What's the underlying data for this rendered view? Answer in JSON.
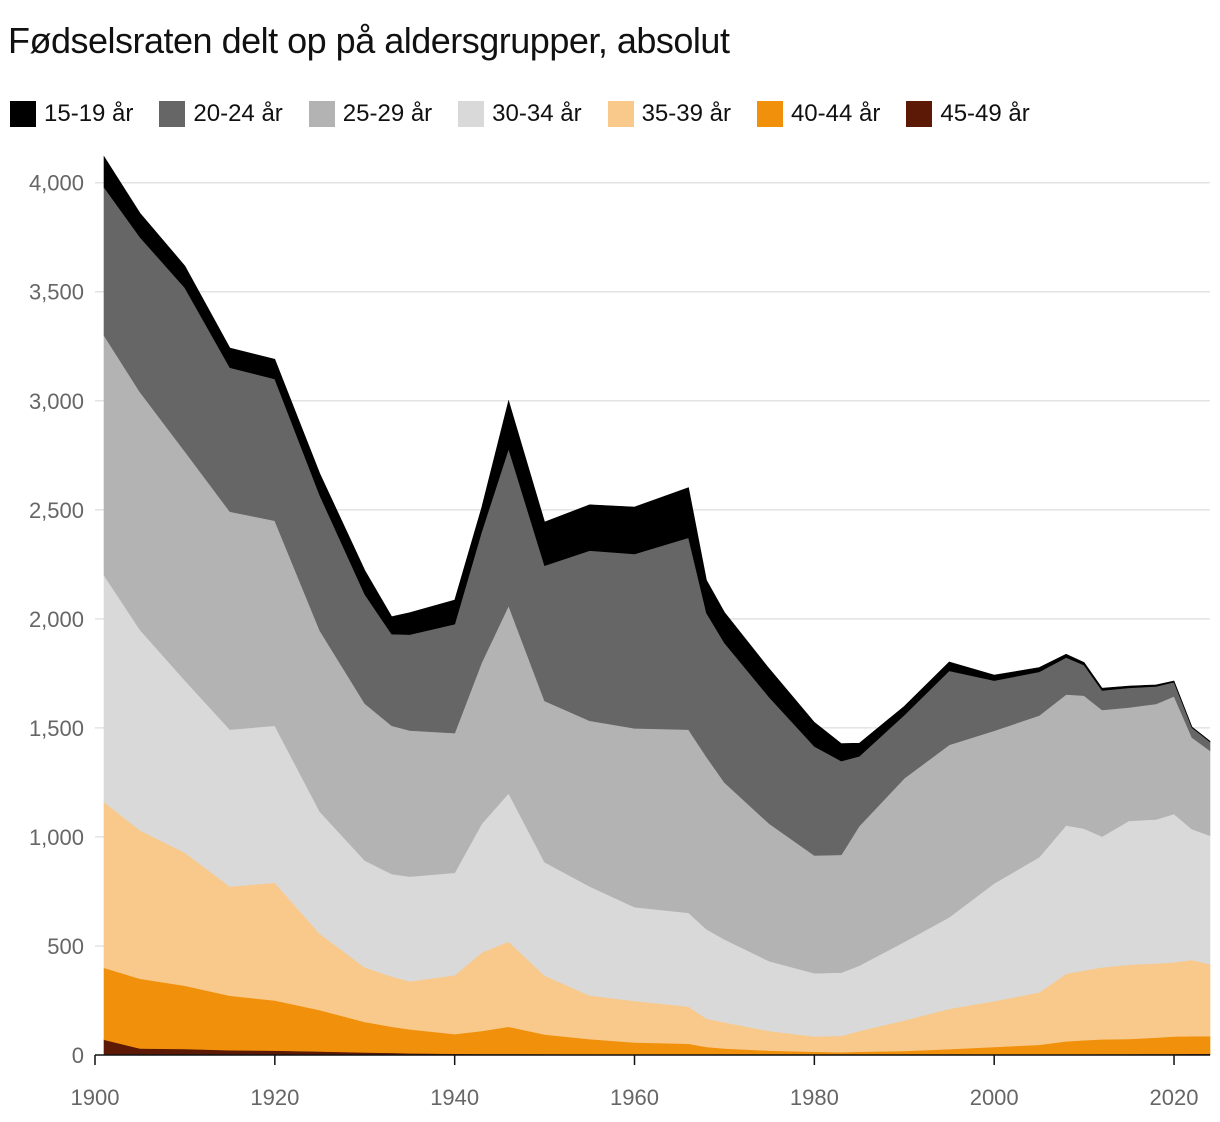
{
  "chart_data": {
    "type": "area",
    "stacked": true,
    "title": "Fødselsraten delt op på aldersgrupper, absolut",
    "legend_position": "top-left",
    "grid": "horizontal",
    "xlim": [
      1900,
      2024
    ],
    "ylim": [
      0,
      4150
    ],
    "x_ticks": [
      1900,
      1920,
      1940,
      1960,
      1980,
      2000,
      2020
    ],
    "y_ticks": [
      0,
      500,
      1000,
      1500,
      2000,
      2500,
      3000,
      3500,
      4000
    ],
    "x_tick_labels": [
      "1900",
      "1920",
      "1940",
      "1960",
      "1980",
      "2000",
      "2020"
    ],
    "y_tick_labels": [
      "0",
      "500",
      "1,000",
      "1,500",
      "2,000",
      "2,500",
      "3,000",
      "3,500",
      "4,000"
    ],
    "x": [
      1901,
      1905,
      1910,
      1915,
      1920,
      1925,
      1930,
      1933,
      1935,
      1940,
      1943,
      1946,
      1950,
      1955,
      1960,
      1966,
      1968,
      1970,
      1975,
      1980,
      1983,
      1985,
      1990,
      1995,
      2000,
      2005,
      2008,
      2010,
      2012,
      2015,
      2018,
      2020,
      2022,
      2024
    ],
    "series": [
      {
        "name": "45-49 år",
        "color": "#5c1a06",
        "values": [
          70,
          30,
          28,
          22,
          20,
          16,
          12,
          10,
          8,
          6,
          5,
          5,
          4,
          3,
          3,
          2,
          2,
          2,
          2,
          1,
          1,
          1,
          1,
          1,
          2,
          2,
          3,
          3,
          4,
          4,
          5,
          5,
          6,
          6
        ]
      },
      {
        "name": "40-44 år",
        "color": "#f0900b",
        "values": [
          330,
          320,
          290,
          250,
          230,
          190,
          140,
          120,
          110,
          90,
          105,
          125,
          90,
          70,
          55,
          50,
          35,
          28,
          18,
          14,
          12,
          14,
          18,
          26,
          35,
          45,
          60,
          65,
          68,
          70,
          75,
          80,
          80,
          80
        ]
      },
      {
        "name": "35-39 år",
        "color": "#f8c98a",
        "values": [
          760,
          680,
          610,
          500,
          540,
          350,
          250,
          230,
          220,
          270,
          360,
          390,
          270,
          200,
          190,
          170,
          130,
          120,
          90,
          70,
          75,
          95,
          140,
          185,
          210,
          240,
          310,
          320,
          330,
          340,
          340,
          340,
          350,
          330
        ]
      },
      {
        "name": "30-34 år",
        "color": "#d9d9d9",
        "values": [
          1040,
          920,
          790,
          720,
          720,
          560,
          490,
          470,
          480,
          470,
          590,
          680,
          520,
          500,
          430,
          430,
          410,
          380,
          320,
          290,
          290,
          300,
          360,
          420,
          540,
          620,
          680,
          650,
          600,
          660,
          660,
          680,
          600,
          590
        ]
      },
      {
        "name": "25-29 år",
        "color": "#b3b3b3",
        "values": [
          1100,
          1090,
          1050,
          1000,
          940,
          830,
          720,
          680,
          670,
          640,
          740,
          860,
          740,
          760,
          820,
          840,
          790,
          720,
          630,
          540,
          540,
          640,
          750,
          790,
          700,
          650,
          600,
          610,
          580,
          520,
          530,
          540,
          420,
          390
        ]
      },
      {
        "name": "20-24 år",
        "color": "#666666",
        "values": [
          680,
          710,
          750,
          660,
          650,
          620,
          500,
          420,
          440,
          500,
          600,
          720,
          620,
          780,
          800,
          880,
          660,
          640,
          580,
          500,
          430,
          320,
          290,
          340,
          230,
          200,
          170,
          140,
          90,
          90,
          80,
          65,
          45,
          40
        ]
      },
      {
        "name": "15-19 år",
        "color": "#000000",
        "values": [
          140,
          110,
          100,
          90,
          90,
          100,
          110,
          80,
          100,
          110,
          110,
          220,
          200,
          210,
          215,
          230,
          150,
          140,
          130,
          110,
          80,
          60,
          40,
          40,
          25,
          20,
          15,
          12,
          10,
          8,
          7,
          5,
          3,
          3
        ]
      }
    ]
  }
}
